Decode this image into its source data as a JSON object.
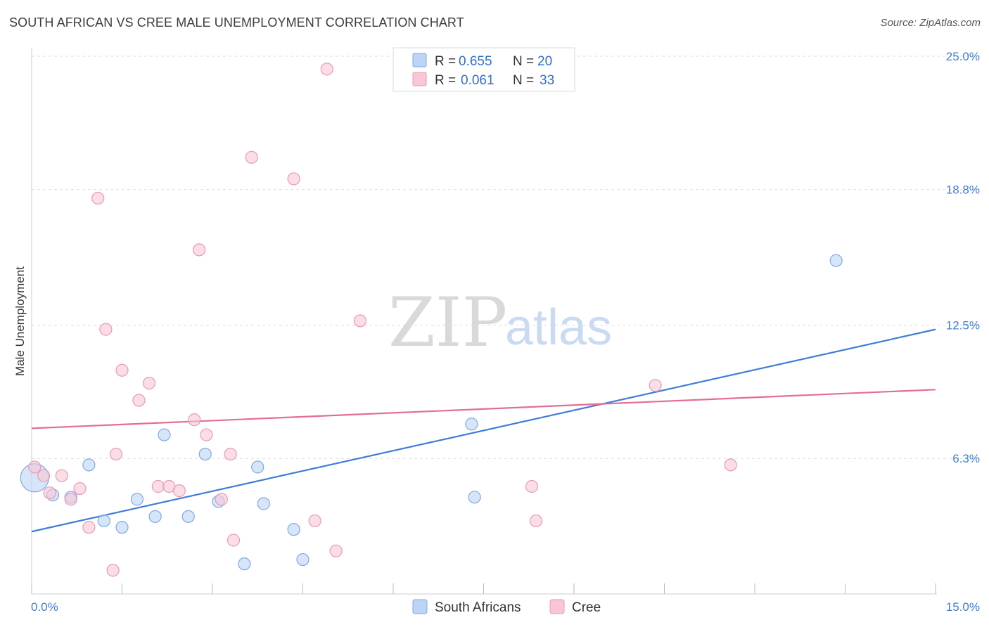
{
  "title": "SOUTH AFRICAN VS CREE MALE UNEMPLOYMENT CORRELATION CHART",
  "source": "Source: ZipAtlas.com",
  "colors": {
    "blue": "#3f7dd6",
    "blue_fill": "#bcd4f5",
    "pink": "#e46d96",
    "pink_fill": "#f8c6d6",
    "grid": "#dddddd"
  },
  "legend": {
    "items": [
      {
        "r_label": "R =",
        "r_value": "0.655",
        "n_label": "N =",
        "n_value": "20"
      },
      {
        "r_label": "R =",
        "r_value": "0.061",
        "n_label": "N =",
        "n_value": "33"
      }
    ]
  },
  "watermark": {
    "zip": "ZIP",
    "atlas": "atlas"
  },
  "chart_data": {
    "type": "scatter",
    "title": "SOUTH AFRICAN VS CREE MALE UNEMPLOYMENT CORRELATION CHART",
    "xlabel": "",
    "ylabel": "Male Unemployment",
    "xlim": [
      0,
      15
    ],
    "ylim": [
      0,
      25.0
    ],
    "x_tick_labels": [
      "0.0%",
      "15.0%"
    ],
    "y_ticks": [
      6.3,
      12.5,
      18.8,
      25.0
    ],
    "y_tick_labels": [
      "6.3%",
      "12.5%",
      "18.8%",
      "25.0%"
    ],
    "grid": true,
    "series": [
      {
        "name": "South Africans",
        "color": "blue",
        "points": [
          {
            "x": 0.05,
            "y": 5.4,
            "size": "large"
          },
          {
            "x": 0.35,
            "y": 4.6
          },
          {
            "x": 0.65,
            "y": 4.5
          },
          {
            "x": 0.95,
            "y": 6.0
          },
          {
            "x": 1.2,
            "y": 3.4
          },
          {
            "x": 1.5,
            "y": 3.1
          },
          {
            "x": 1.75,
            "y": 4.4
          },
          {
            "x": 2.05,
            "y": 3.6
          },
          {
            "x": 2.2,
            "y": 7.4
          },
          {
            "x": 2.6,
            "y": 3.6
          },
          {
            "x": 2.88,
            "y": 6.5
          },
          {
            "x": 3.1,
            "y": 4.3
          },
          {
            "x": 3.53,
            "y": 1.4
          },
          {
            "x": 3.75,
            "y": 5.9
          },
          {
            "x": 3.85,
            "y": 4.2
          },
          {
            "x": 4.35,
            "y": 3.0
          },
          {
            "x": 4.5,
            "y": 1.6
          },
          {
            "x": 7.3,
            "y": 7.9
          },
          {
            "x": 7.35,
            "y": 4.5
          },
          {
            "x": 13.35,
            "y": 15.5
          }
        ],
        "trend": {
          "x": [
            0,
            15
          ],
          "y": [
            2.9,
            12.3
          ]
        }
      },
      {
        "name": "Cree",
        "color": "pink",
        "points": [
          {
            "x": 0.05,
            "y": 5.9
          },
          {
            "x": 0.2,
            "y": 5.5
          },
          {
            "x": 0.3,
            "y": 4.7
          },
          {
            "x": 0.5,
            "y": 5.5
          },
          {
            "x": 0.65,
            "y": 4.4
          },
          {
            "x": 0.8,
            "y": 4.9
          },
          {
            "x": 0.95,
            "y": 3.1
          },
          {
            "x": 1.1,
            "y": 18.4
          },
          {
            "x": 1.23,
            "y": 12.3
          },
          {
            "x": 1.35,
            "y": 1.1
          },
          {
            "x": 1.4,
            "y": 6.5
          },
          {
            "x": 1.5,
            "y": 10.4
          },
          {
            "x": 1.78,
            "y": 9.0
          },
          {
            "x": 1.95,
            "y": 9.8
          },
          {
            "x": 2.1,
            "y": 5.0
          },
          {
            "x": 2.28,
            "y": 5.0
          },
          {
            "x": 2.45,
            "y": 4.8
          },
          {
            "x": 2.7,
            "y": 8.1
          },
          {
            "x": 2.78,
            "y": 16.0
          },
          {
            "x": 2.9,
            "y": 7.4
          },
          {
            "x": 3.15,
            "y": 4.4
          },
          {
            "x": 3.3,
            "y": 6.5
          },
          {
            "x": 3.35,
            "y": 2.5
          },
          {
            "x": 3.65,
            "y": 20.3
          },
          {
            "x": 4.35,
            "y": 19.3
          },
          {
            "x": 4.7,
            "y": 3.4
          },
          {
            "x": 4.9,
            "y": 24.4
          },
          {
            "x": 5.05,
            "y": 2.0
          },
          {
            "x": 5.45,
            "y": 12.7
          },
          {
            "x": 8.3,
            "y": 5.0
          },
          {
            "x": 8.37,
            "y": 3.4
          },
          {
            "x": 10.35,
            "y": 9.7
          },
          {
            "x": 11.6,
            "y": 6.0
          }
        ],
        "trend": {
          "x": [
            0,
            15
          ],
          "y": [
            7.7,
            9.5
          ]
        }
      }
    ]
  }
}
